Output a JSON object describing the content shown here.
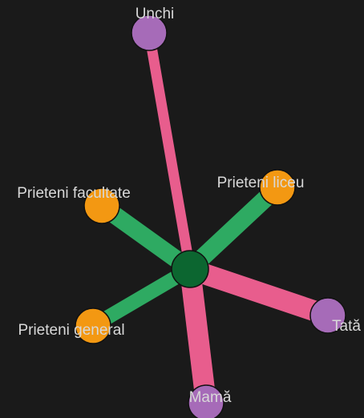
{
  "nodes": [
    {
      "label": "Unchi"
    },
    {
      "label": "Prieteni facultate"
    },
    {
      "label": "Prieteni liceu"
    },
    {
      "label": "Tată"
    },
    {
      "label": "Mamă"
    },
    {
      "label": "Prieteni general"
    }
  ]
}
